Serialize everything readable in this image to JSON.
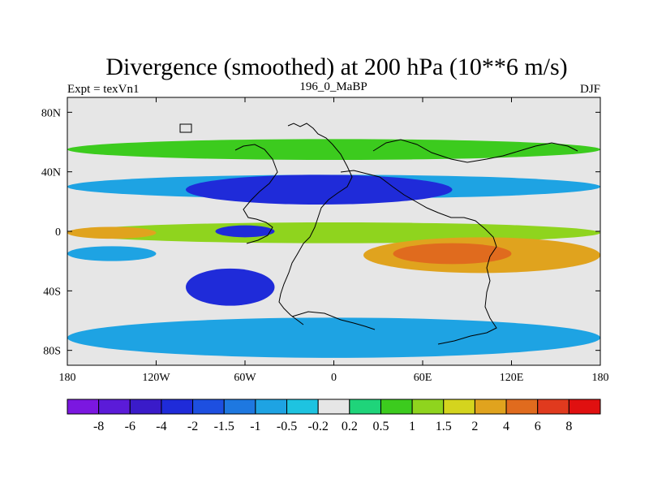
{
  "chart_data": {
    "type": "heatmap",
    "title": "Divergence (smoothed) at 200 hPa (10**6 m/s)",
    "left_label": "Expt = texVn1",
    "center_label": "196_0_MaBP",
    "right_label": "DJF",
    "x_ticks": [
      {
        "value": -180,
        "label": "180"
      },
      {
        "value": -120,
        "label": "120W"
      },
      {
        "value": -60,
        "label": "60W"
      },
      {
        "value": 0,
        "label": "0"
      },
      {
        "value": 60,
        "label": "60E"
      },
      {
        "value": 120,
        "label": "120E"
      },
      {
        "value": 180,
        "label": "180"
      }
    ],
    "y_ticks": [
      {
        "value": 80,
        "label": "80N"
      },
      {
        "value": 40,
        "label": "40N"
      },
      {
        "value": 0,
        "label": "0"
      },
      {
        "value": -40,
        "label": "40S"
      },
      {
        "value": -80,
        "label": "80S"
      }
    ],
    "xlim": [
      -180,
      180
    ],
    "ylim": [
      -90,
      90
    ],
    "levels": [
      "-8",
      "-6",
      "-4",
      "-2",
      "-1.5",
      "-1",
      "-0.5",
      "-0.2",
      "0.2",
      "0.5",
      "1",
      "1.5",
      "2",
      "4",
      "6",
      "8"
    ],
    "colors": [
      "#7b17e0",
      "#5b1bd8",
      "#3a1bc9",
      "#1f2bd9",
      "#1d4fe0",
      "#1e78e0",
      "#1ea3e3",
      "#1ec3e0",
      "#e6e6e6",
      "#1fd47a",
      "#3ccb1e",
      "#8fd41e",
      "#d4d41e",
      "#e0a31e",
      "#e06b1e",
      "#e03a1e",
      "#e01010"
    ],
    "field_regions": [
      {
        "lon": [
          -180,
          180
        ],
        "lat": [
          48,
          62
        ],
        "value": 0.7
      },
      {
        "lon": [
          -180,
          180
        ],
        "lat": [
          22,
          38
        ],
        "value": -0.8
      },
      {
        "lon": [
          -100,
          80
        ],
        "lat": [
          18,
          38
        ],
        "value": -2.5
      },
      {
        "lon": [
          -180,
          180
        ],
        "lat": [
          -8,
          6
        ],
        "value": 1.2
      },
      {
        "lon": [
          -180,
          -120
        ],
        "lat": [
          -5,
          3
        ],
        "value": 2.5
      },
      {
        "lon": [
          -80,
          -40
        ],
        "lat": [
          -4,
          4
        ],
        "value": -3.0
      },
      {
        "lon": [
          20,
          180
        ],
        "lat": [
          -28,
          -4
        ],
        "value": 2.5
      },
      {
        "lon": [
          40,
          120
        ],
        "lat": [
          -22,
          -8
        ],
        "value": 5.0
      },
      {
        "lon": [
          -100,
          -40
        ],
        "lat": [
          -50,
          -25
        ],
        "value": -3.0
      },
      {
        "lon": [
          -180,
          180
        ],
        "lat": [
          -85,
          -58
        ],
        "value": -0.8
      },
      {
        "lon": [
          -180,
          -120
        ],
        "lat": [
          -20,
          -10
        ],
        "value": -1.0
      }
    ],
    "xlabel": "",
    "ylabel": ""
  }
}
